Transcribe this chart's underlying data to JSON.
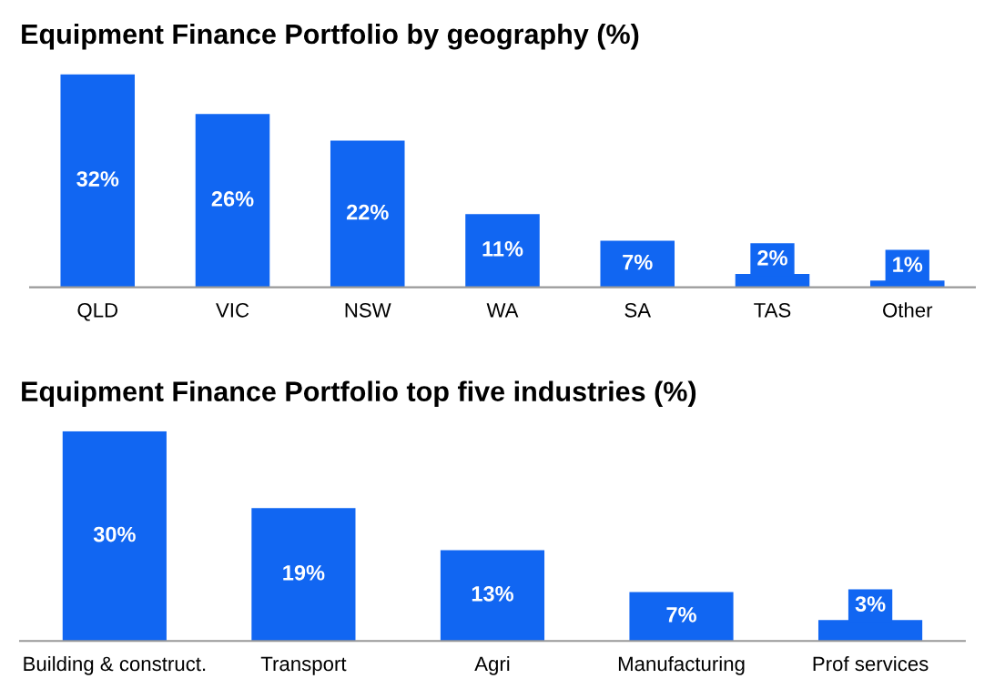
{
  "chart_data": [
    {
      "type": "bar",
      "title": "Equipment Finance Portfolio by geography (%)",
      "categories": [
        "QLD",
        "VIC",
        "NSW",
        "WA",
        "SA",
        "TAS",
        "Other"
      ],
      "values": [
        32,
        26,
        22,
        11,
        7,
        2,
        1
      ],
      "value_labels": [
        "32%",
        "26%",
        "22%",
        "11%",
        "7%",
        "2%",
        "1%"
      ],
      "color": "#1166f2",
      "grid": false,
      "legend": false
    },
    {
      "type": "bar",
      "title": "Equipment Finance Portfolio top five industries (%)",
      "categories": [
        "Building & construct.",
        "Transport",
        "Agri",
        "Manufacturing",
        "Prof services"
      ],
      "values": [
        30,
        19,
        13,
        7,
        3
      ],
      "value_labels": [
        "30%",
        "19%",
        "13%",
        "7%",
        "3%"
      ],
      "color": "#1166f2",
      "grid": false,
      "legend": false
    }
  ]
}
